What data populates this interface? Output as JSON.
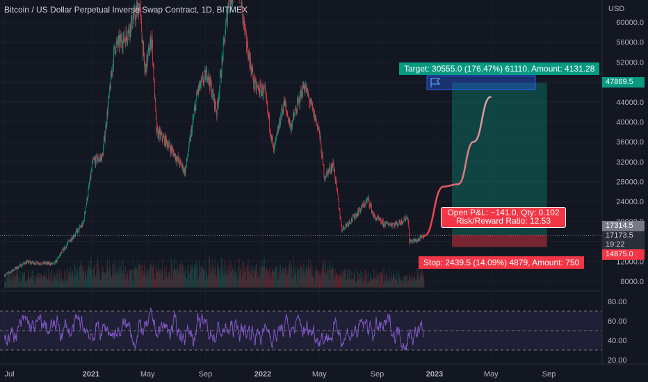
{
  "chart_data": {
    "type": "candlestick",
    "title": "Bitcoin / US Dollar Perpetual Inverse Swap Contract, 1D, BITMEX",
    "currency": "USD",
    "y_ticks": [
      60000,
      56000,
      52000,
      48000,
      44000,
      40000,
      36000,
      32000,
      28000,
      24000,
      20000,
      16000,
      12000,
      8000
    ],
    "y_tick_labels": [
      "60000.0",
      "56000.0",
      "52000.0",
      "48000.0",
      "44000.0",
      "40000.0",
      "36000.0",
      "32000.0",
      "28000.0",
      "24000.0",
      "20000.0",
      "16000.0",
      "12000.0",
      "8000.0"
    ],
    "ylim": [
      7000,
      64000
    ],
    "x_ticks": [
      "Jul",
      "2021",
      "May",
      "Sep",
      "2022",
      "May",
      "Sep",
      "2023",
      "May",
      "Sep"
    ],
    "price_path": [
      [
        "2020-07-01",
        9200
      ],
      [
        "2020-08-15",
        11800
      ],
      [
        "2020-10-15",
        11500
      ],
      [
        "2020-11-15",
        16000
      ],
      [
        "2020-12-15",
        19500
      ],
      [
        "2021-01-05",
        32000
      ],
      [
        "2021-01-25",
        33000
      ],
      [
        "2021-02-20",
        55000
      ],
      [
        "2021-03-15",
        57000
      ],
      [
        "2021-04-14",
        63500
      ],
      [
        "2021-04-25",
        50000
      ],
      [
        "2021-05-10",
        57000
      ],
      [
        "2021-05-20",
        38000
      ],
      [
        "2021-06-10",
        36000
      ],
      [
        "2021-07-20",
        30000
      ],
      [
        "2021-08-15",
        46000
      ],
      [
        "2021-09-05",
        50000
      ],
      [
        "2021-09-25",
        42000
      ],
      [
        "2021-10-20",
        64000
      ],
      [
        "2021-11-10",
        68000
      ],
      [
        "2021-11-25",
        57000
      ],
      [
        "2021-12-15",
        47000
      ],
      [
        "2022-01-05",
        46000
      ],
      [
        "2022-01-24",
        34000
      ],
      [
        "2022-02-15",
        44000
      ],
      [
        "2022-03-01",
        39000
      ],
      [
        "2022-03-30",
        47500
      ],
      [
        "2022-04-30",
        38500
      ],
      [
        "2022-05-12",
        29000
      ],
      [
        "2022-05-31",
        31500
      ],
      [
        "2022-06-18",
        18500
      ],
      [
        "2022-07-15",
        21000
      ],
      [
        "2022-08-13",
        24500
      ],
      [
        "2022-08-25",
        21000
      ],
      [
        "2022-09-15",
        19500
      ],
      [
        "2022-10-15",
        19500
      ],
      [
        "2022-11-05",
        21000
      ],
      [
        "2022-11-09",
        16000
      ],
      [
        "2022-11-25",
        16200
      ],
      [
        "2022-12-10",
        17100
      ]
    ],
    "projection_path": [
      [
        "2022-12-10",
        17100
      ],
      [
        "2023-01-20",
        27000
      ],
      [
        "2023-02-20",
        27500
      ],
      [
        "2023-03-25",
        36000
      ],
      [
        "2023-04-30",
        45000
      ]
    ],
    "position": {
      "target_price": 47869.5,
      "entry_price": 17314.5,
      "stop_price": 14875.0,
      "start_date": "2023-02-07",
      "end_date": "2023-08-28",
      "target_label": "Target: 30555.0 (176.47%) 61110, Amount: 4131.28",
      "stop_label": "Stop: 2439.5 (14.09%) 4879, Amount: 750",
      "pnl_line1": "Open P&L: −141.0, Qty: 0.102",
      "pnl_line2": "Risk/Reward Ratio: 12.53"
    },
    "price_badges": {
      "target": "47869.5",
      "entry": "17314.5",
      "current": "17173.5",
      "countdown": "19:22",
      "stop": "14875.0"
    },
    "rsi": {
      "y_ticks": [
        80,
        60,
        40,
        20
      ],
      "y_tick_labels": [
        "80.00",
        "60.00",
        "40.00",
        "20.00"
      ],
      "ylim": [
        18,
        88
      ],
      "band_upper": 70,
      "band_middle": 50,
      "band_lower": 30,
      "last_value": 49
    },
    "colors": {
      "background": "#131722",
      "up": "#089981",
      "down": "#f23645",
      "rsi_line": "#7e57c2",
      "text": "#b2b5be"
    }
  }
}
